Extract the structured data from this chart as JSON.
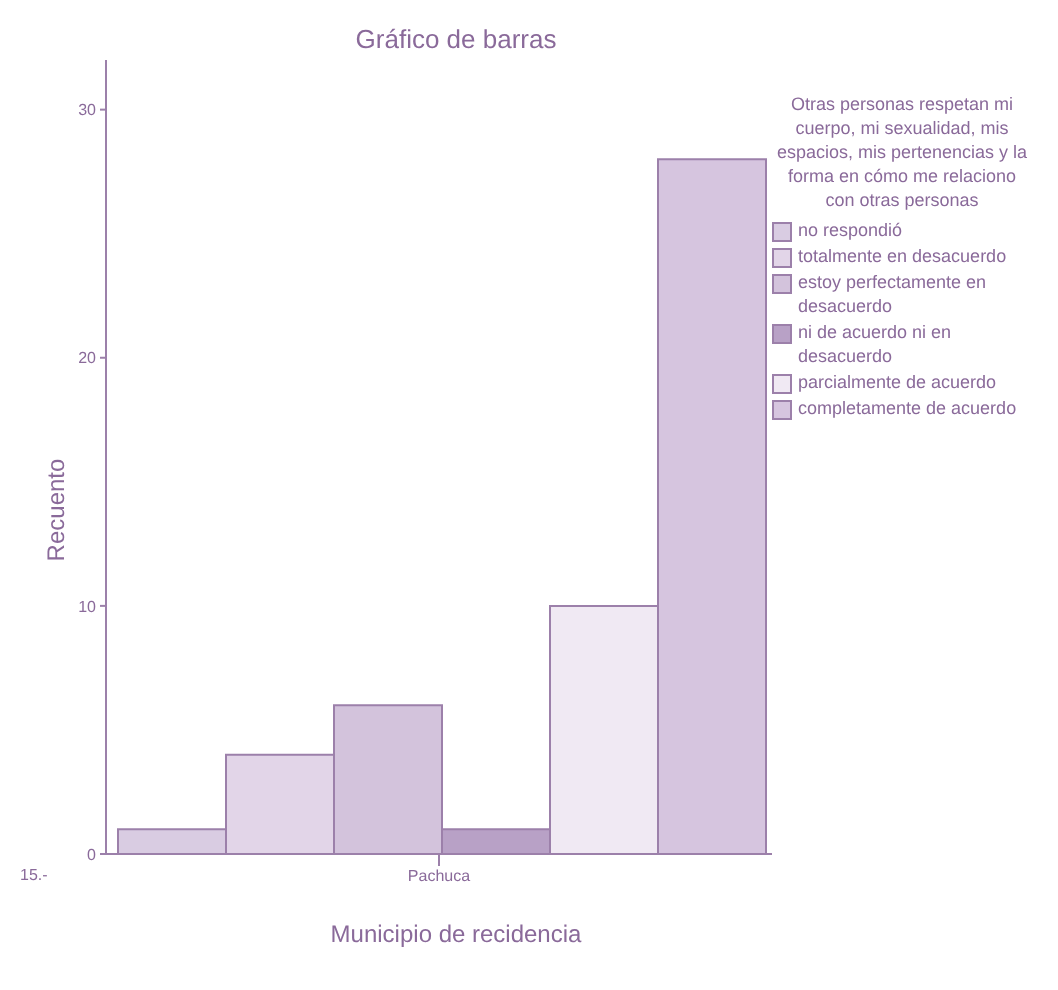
{
  "chart_data": {
    "type": "bar",
    "title": "Gráfico de barras",
    "xlabel": "Municipio de recidencia",
    "ylabel": "Recuento",
    "legend_title": "Otras personas respetan mi cuerpo, mi sexualidad, mis espacios, mis pertenencias y la forma en cómo me relaciono con otras personas",
    "categories": [
      "Pachuca"
    ],
    "series": [
      {
        "name": "no respondió",
        "color": "#d9cce2",
        "values": [
          1
        ]
      },
      {
        "name": "totalmente en desacuerdo",
        "color": "#e2d5e8",
        "values": [
          4
        ]
      },
      {
        "name": "estoy perfectamente en desacuerdo",
        "color": "#d3c3dc",
        "values": [
          6
        ]
      },
      {
        "name": "ni de acuerdo ni en desacuerdo",
        "color": "#b8a1c6",
        "values": [
          1
        ]
      },
      {
        "name": "parcialmente de acuerdo",
        "color": "#f0e9f3",
        "values": [
          10
        ]
      },
      {
        "name": "completamente de acuerdo",
        "color": "#d6c5df",
        "values": [
          28
        ]
      }
    ],
    "ylim": [
      0,
      32
    ],
    "yticks": [
      0,
      10,
      20,
      30
    ],
    "grid": false,
    "legend": "right",
    "annotations": [
      "15.-"
    ]
  }
}
